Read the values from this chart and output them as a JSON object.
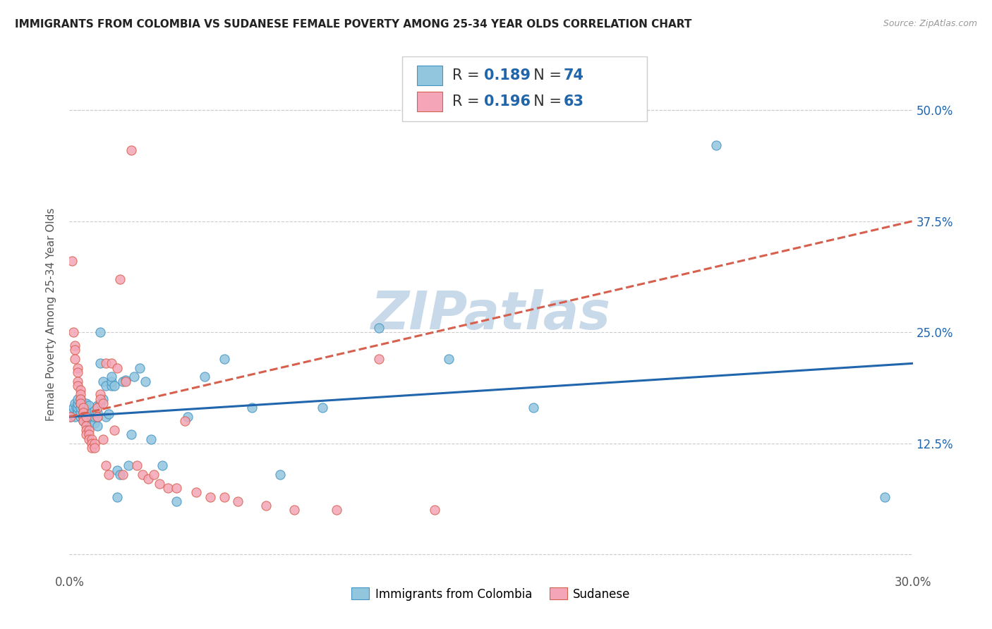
{
  "title": "IMMIGRANTS FROM COLOMBIA VS SUDANESE FEMALE POVERTY AMONG 25-34 YEAR OLDS CORRELATION CHART",
  "source": "Source: ZipAtlas.com",
  "ylabel": "Female Poverty Among 25-34 Year Olds",
  "xlim": [
    0.0,
    0.3
  ],
  "ylim": [
    -0.02,
    0.56
  ],
  "xtick_positions": [
    0.0,
    0.03,
    0.06,
    0.09,
    0.12,
    0.15,
    0.18,
    0.21,
    0.24,
    0.27,
    0.3
  ],
  "xtick_labels": [
    "0.0%",
    "",
    "",
    "",
    "",
    "",
    "",
    "",
    "",
    "",
    "30.0%"
  ],
  "ytick_positions": [
    0.0,
    0.125,
    0.25,
    0.375,
    0.5
  ],
  "ytick_labels": [
    "",
    "12.5%",
    "25.0%",
    "37.5%",
    "50.0%"
  ],
  "colombia_color": "#92c5de",
  "colombia_edge": "#4393c3",
  "sudanese_color": "#f4a6b8",
  "sudanese_edge": "#d6604d",
  "colombia_R": 0.189,
  "colombia_N": 74,
  "sudanese_R": 0.196,
  "sudanese_N": 63,
  "trend_colombia_color": "#2166ac",
  "trend_sudanese_color": "#d6604d",
  "watermark": "ZIPatlas",
  "watermark_color": "#c8daea",
  "legend_text_color": "#2166ac",
  "legend_label_color": "#333333",
  "colombia_points_x": [
    0.0005,
    0.001,
    0.0015,
    0.002,
    0.002,
    0.0025,
    0.003,
    0.003,
    0.003,
    0.003,
    0.004,
    0.004,
    0.004,
    0.004,
    0.004,
    0.005,
    0.005,
    0.005,
    0.005,
    0.005,
    0.006,
    0.006,
    0.006,
    0.006,
    0.007,
    0.007,
    0.007,
    0.007,
    0.008,
    0.008,
    0.008,
    0.009,
    0.009,
    0.009,
    0.01,
    0.01,
    0.01,
    0.01,
    0.011,
    0.011,
    0.011,
    0.012,
    0.012,
    0.013,
    0.013,
    0.014,
    0.015,
    0.015,
    0.015,
    0.016,
    0.017,
    0.017,
    0.018,
    0.019,
    0.02,
    0.021,
    0.022,
    0.023,
    0.025,
    0.027,
    0.029,
    0.033,
    0.038,
    0.042,
    0.048,
    0.055,
    0.065,
    0.075,
    0.09,
    0.11,
    0.135,
    0.165,
    0.23,
    0.29
  ],
  "colombia_points_y": [
    0.155,
    0.16,
    0.165,
    0.155,
    0.17,
    0.165,
    0.16,
    0.165,
    0.17,
    0.175,
    0.155,
    0.16,
    0.165,
    0.17,
    0.175,
    0.15,
    0.155,
    0.16,
    0.165,
    0.17,
    0.15,
    0.155,
    0.16,
    0.17,
    0.148,
    0.155,
    0.16,
    0.168,
    0.15,
    0.155,
    0.16,
    0.148,
    0.155,
    0.162,
    0.145,
    0.155,
    0.16,
    0.168,
    0.25,
    0.215,
    0.17,
    0.175,
    0.195,
    0.155,
    0.19,
    0.158,
    0.19,
    0.195,
    0.2,
    0.19,
    0.065,
    0.095,
    0.09,
    0.195,
    0.196,
    0.1,
    0.135,
    0.2,
    0.21,
    0.195,
    0.13,
    0.1,
    0.06,
    0.155,
    0.2,
    0.22,
    0.165,
    0.09,
    0.165,
    0.255,
    0.22,
    0.165,
    0.46,
    0.065
  ],
  "sudanese_points_x": [
    0.0005,
    0.001,
    0.0015,
    0.002,
    0.002,
    0.002,
    0.003,
    0.003,
    0.003,
    0.003,
    0.004,
    0.004,
    0.004,
    0.004,
    0.005,
    0.005,
    0.005,
    0.005,
    0.006,
    0.006,
    0.006,
    0.006,
    0.007,
    0.007,
    0.007,
    0.008,
    0.008,
    0.008,
    0.009,
    0.009,
    0.01,
    0.01,
    0.011,
    0.011,
    0.012,
    0.012,
    0.013,
    0.013,
    0.014,
    0.015,
    0.016,
    0.017,
    0.018,
    0.019,
    0.02,
    0.022,
    0.024,
    0.026,
    0.028,
    0.03,
    0.032,
    0.035,
    0.038,
    0.041,
    0.045,
    0.05,
    0.055,
    0.06,
    0.07,
    0.08,
    0.095,
    0.11,
    0.13
  ],
  "sudanese_points_y": [
    0.155,
    0.33,
    0.25,
    0.235,
    0.23,
    0.22,
    0.21,
    0.205,
    0.195,
    0.19,
    0.185,
    0.18,
    0.175,
    0.17,
    0.165,
    0.16,
    0.155,
    0.15,
    0.155,
    0.145,
    0.14,
    0.135,
    0.14,
    0.135,
    0.13,
    0.13,
    0.125,
    0.12,
    0.125,
    0.12,
    0.165,
    0.155,
    0.18,
    0.175,
    0.17,
    0.13,
    0.1,
    0.215,
    0.09,
    0.215,
    0.14,
    0.21,
    0.31,
    0.09,
    0.195,
    0.455,
    0.1,
    0.09,
    0.085,
    0.09,
    0.08,
    0.075,
    0.075,
    0.15,
    0.07,
    0.065,
    0.065,
    0.06,
    0.055,
    0.05,
    0.05,
    0.22,
    0.05
  ]
}
